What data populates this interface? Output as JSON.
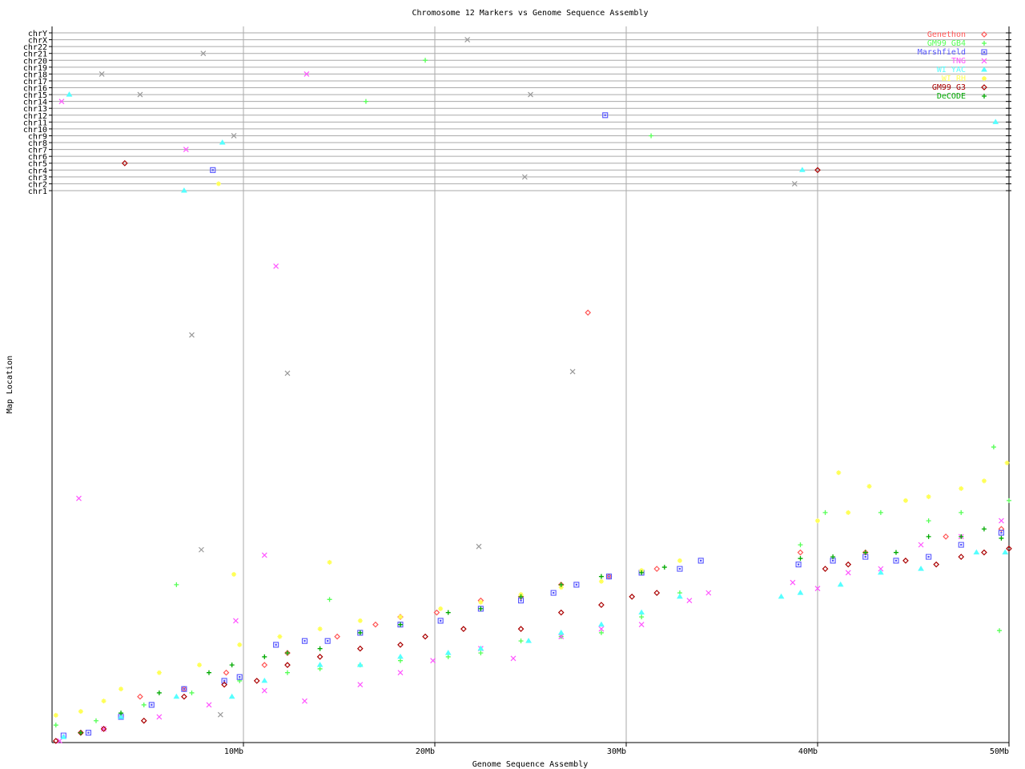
{
  "chart_data": {
    "type": "scatter",
    "title": "Chromosome 12 Markers vs Genome Sequence Assembly",
    "xlabel": "Genome Sequence Assembly",
    "ylabel": "Map Location",
    "xlim": [
      0,
      50
    ],
    "ylim": [
      0,
      100
    ],
    "x_ticks": [
      {
        "v": 10,
        "label": "10Mb"
      },
      {
        "v": 20,
        "label": "20Mb"
      },
      {
        "v": 30,
        "label": "30Mb"
      },
      {
        "v": 40,
        "label": "40Mb"
      },
      {
        "v": 50,
        "label": "50Mb"
      }
    ],
    "chromosome_rows": [
      "chrY",
      "chrX",
      "chr22",
      "chr21",
      "chr20",
      "chr19",
      "chr18",
      "chr17",
      "chr16",
      "chr15",
      "chr14",
      "chr13",
      "chr12",
      "chr11",
      "chr10",
      "chr9",
      "chr8",
      "chr7",
      "chr6",
      "chr5",
      "chr4",
      "chr3",
      "chr2",
      "chr1"
    ],
    "grid": true,
    "legend_position": "top-right",
    "series": [
      {
        "name": "Genethon",
        "color": "#ff5555",
        "marker": "diamond",
        "points": [
          [
            4.6,
            8.4
          ],
          [
            6.9,
            9.8
          ],
          [
            9.1,
            12.8
          ],
          [
            11.1,
            14.2
          ],
          [
            12.3,
            16.4
          ],
          [
            14.9,
            19.4
          ],
          [
            16.9,
            21.6
          ],
          [
            18.2,
            23.0
          ],
          [
            20.1,
            23.8
          ],
          [
            22.4,
            26.0
          ],
          [
            24.5,
            26.7
          ],
          [
            26.6,
            28.9
          ],
          [
            29.1,
            30.4
          ],
          [
            31.6,
            31.8
          ],
          [
            39.1,
            34.8
          ],
          [
            42.5,
            34.8
          ],
          [
            46.7,
            37.7
          ],
          [
            49.6,
            39.1
          ],
          [
            28.0,
            78.7
          ]
        ],
        "off_chromosome": []
      },
      {
        "name": "GM99 GB4",
        "color": "#55ff55",
        "marker": "plus",
        "points": [
          [
            0.2,
            3.2
          ],
          [
            2.3,
            4.0
          ],
          [
            4.8,
            6.9
          ],
          [
            7.3,
            9.1
          ],
          [
            9.8,
            11.3
          ],
          [
            12.3,
            12.8
          ],
          [
            14.0,
            13.5
          ],
          [
            16.1,
            14.2
          ],
          [
            18.2,
            15.0
          ],
          [
            20.7,
            15.7
          ],
          [
            22.4,
            16.4
          ],
          [
            24.5,
            18.6
          ],
          [
            26.6,
            19.4
          ],
          [
            28.7,
            20.1
          ],
          [
            30.8,
            23.0
          ],
          [
            32.8,
            27.4
          ],
          [
            39.1,
            36.2
          ],
          [
            40.4,
            42.1
          ],
          [
            43.3,
            42.1
          ],
          [
            45.8,
            40.6
          ],
          [
            47.5,
            42.1
          ],
          [
            50.0,
            44.3
          ],
          [
            6.5,
            28.9
          ],
          [
            14.5,
            26.2
          ],
          [
            49.2,
            54.1
          ],
          [
            49.5,
            20.5
          ]
        ],
        "off_chromosome": [
          {
            "chr": "chr20",
            "x": 19.5
          },
          {
            "chr": "chr14",
            "x": 16.4
          },
          {
            "chr": "chr9",
            "x": 31.3
          }
        ]
      },
      {
        "name": "Marshfield",
        "color": "#5555ff",
        "marker": "square",
        "points": [
          [
            0.6,
            1.3
          ],
          [
            1.9,
            1.8
          ],
          [
            3.6,
            4.7
          ],
          [
            5.2,
            6.9
          ],
          [
            6.9,
            9.8
          ],
          [
            9.0,
            11.3
          ],
          [
            9.8,
            12.0
          ],
          [
            11.7,
            17.9
          ],
          [
            13.2,
            18.6
          ],
          [
            14.4,
            18.6
          ],
          [
            16.1,
            20.1
          ],
          [
            18.2,
            21.6
          ],
          [
            20.3,
            22.3
          ],
          [
            22.4,
            24.5
          ],
          [
            24.5,
            26.0
          ],
          [
            26.2,
            27.4
          ],
          [
            27.4,
            28.9
          ],
          [
            29.1,
            30.4
          ],
          [
            30.8,
            31.1
          ],
          [
            32.8,
            31.8
          ],
          [
            33.9,
            33.3
          ],
          [
            39.0,
            32.6
          ],
          [
            40.8,
            33.3
          ],
          [
            42.5,
            34.0
          ],
          [
            44.1,
            33.3
          ],
          [
            45.8,
            34.0
          ],
          [
            47.5,
            36.2
          ],
          [
            49.6,
            38.4
          ]
        ],
        "off_chromosome": [
          {
            "chr": "chr4",
            "x": 8.4
          },
          {
            "chr": "chr12",
            "x": 28.9
          }
        ]
      },
      {
        "name": "TNG",
        "color": "#ff55ff",
        "marker": "x",
        "points": [
          [
            0.4,
            0.3
          ],
          [
            2.7,
            2.5
          ],
          [
            5.6,
            4.7
          ],
          [
            8.2,
            6.9
          ],
          [
            11.1,
            9.5
          ],
          [
            13.2,
            7.6
          ],
          [
            16.1,
            10.6
          ],
          [
            18.2,
            12.8
          ],
          [
            19.9,
            15.0
          ],
          [
            22.4,
            17.2
          ],
          [
            24.1,
            15.4
          ],
          [
            26.6,
            19.4
          ],
          [
            28.7,
            20.8
          ],
          [
            30.8,
            21.6
          ],
          [
            33.3,
            26.0
          ],
          [
            34.3,
            27.4
          ],
          [
            38.7,
            29.3
          ],
          [
            40.0,
            28.2
          ],
          [
            41.6,
            31.1
          ],
          [
            43.3,
            31.8
          ],
          [
            45.4,
            36.2
          ],
          [
            47.5,
            37.7
          ],
          [
            49.6,
            40.6
          ],
          [
            11.7,
            87.2
          ],
          [
            1.4,
            44.7
          ],
          [
            11.1,
            34.3
          ],
          [
            9.6,
            22.3
          ]
        ],
        "off_chromosome": [
          {
            "chr": "chr14",
            "x": 0.5
          },
          {
            "chr": "chr18",
            "x": 13.3
          },
          {
            "chr": "chr7",
            "x": 7.0
          }
        ]
      },
      {
        "name": "WI YAC",
        "color": "#55ffff",
        "marker": "triangle",
        "points": [
          [
            0.6,
            1.0
          ],
          [
            3.6,
            4.7
          ],
          [
            6.5,
            8.4
          ],
          [
            9.4,
            8.4
          ],
          [
            11.1,
            11.3
          ],
          [
            14.0,
            14.2
          ],
          [
            16.1,
            14.2
          ],
          [
            18.2,
            15.7
          ],
          [
            20.7,
            16.4
          ],
          [
            22.4,
            17.2
          ],
          [
            24.9,
            18.6
          ],
          [
            26.6,
            20.1
          ],
          [
            28.7,
            21.6
          ],
          [
            30.8,
            23.8
          ],
          [
            32.8,
            26.7
          ],
          [
            38.1,
            26.7
          ],
          [
            39.1,
            27.4
          ],
          [
            41.2,
            28.9
          ],
          [
            43.3,
            31.1
          ],
          [
            45.4,
            31.8
          ],
          [
            48.3,
            34.8
          ],
          [
            49.8,
            34.8
          ]
        ],
        "off_chromosome": [
          {
            "chr": "chr15",
            "x": 0.9
          },
          {
            "chr": "chr8",
            "x": 8.9
          },
          {
            "chr": "chr1",
            "x": 6.9
          },
          {
            "chr": "chr4",
            "x": 39.2
          },
          {
            "chr": "chr11",
            "x": 49.3
          }
        ]
      },
      {
        "name": "WI RH",
        "color": "#ffff55",
        "marker": "asterisk",
        "points": [
          [
            0.2,
            5.0
          ],
          [
            1.5,
            5.7
          ],
          [
            2.7,
            7.6
          ],
          [
            3.6,
            9.8
          ],
          [
            5.6,
            12.8
          ],
          [
            7.7,
            14.2
          ],
          [
            9.8,
            17.9
          ],
          [
            11.9,
            19.4
          ],
          [
            14.0,
            20.8
          ],
          [
            16.1,
            22.3
          ],
          [
            18.2,
            23.0
          ],
          [
            20.3,
            24.5
          ],
          [
            22.4,
            25.7
          ],
          [
            24.5,
            27.1
          ],
          [
            26.6,
            28.4
          ],
          [
            28.7,
            29.5
          ],
          [
            30.8,
            31.5
          ],
          [
            32.8,
            33.3
          ],
          [
            40.0,
            40.6
          ],
          [
            41.1,
            49.4
          ],
          [
            41.6,
            42.1
          ],
          [
            42.7,
            46.9
          ],
          [
            44.6,
            44.3
          ],
          [
            45.8,
            45.0
          ],
          [
            47.5,
            46.5
          ],
          [
            48.7,
            47.9
          ],
          [
            49.9,
            51.2
          ],
          [
            9.5,
            30.8
          ],
          [
            14.5,
            33.0
          ]
        ],
        "off_chromosome": [
          {
            "chr": "chr2",
            "x": 8.7
          }
        ]
      },
      {
        "name": "GM99 G3",
        "color": "#aa0000",
        "marker": "diamond",
        "points": [
          [
            0.2,
            0.3
          ],
          [
            1.5,
            1.8
          ],
          [
            2.7,
            2.5
          ],
          [
            4.8,
            4.0
          ],
          [
            6.9,
            8.4
          ],
          [
            9.0,
            10.6
          ],
          [
            10.7,
            11.3
          ],
          [
            12.3,
            14.2
          ],
          [
            14.0,
            15.7
          ],
          [
            16.1,
            17.2
          ],
          [
            18.2,
            17.9
          ],
          [
            19.5,
            19.4
          ],
          [
            21.5,
            20.8
          ],
          [
            24.5,
            20.8
          ],
          [
            26.6,
            23.8
          ],
          [
            28.7,
            25.2
          ],
          [
            30.3,
            26.7
          ],
          [
            31.6,
            27.4
          ],
          [
            40.4,
            31.8
          ],
          [
            41.6,
            32.6
          ],
          [
            44.6,
            33.3
          ],
          [
            46.2,
            32.6
          ],
          [
            47.5,
            34.0
          ],
          [
            48.7,
            34.8
          ],
          [
            50.0,
            35.5
          ]
        ],
        "off_chromosome": [
          {
            "chr": "chr5",
            "x": 3.8
          },
          {
            "chr": "chr4",
            "x": 40.0
          }
        ]
      },
      {
        "name": "DeCODE",
        "color": "#00aa00",
        "marker": "plus",
        "points": [
          [
            1.5,
            1.8
          ],
          [
            3.6,
            5.4
          ],
          [
            5.6,
            9.1
          ],
          [
            8.2,
            12.8
          ],
          [
            9.4,
            14.2
          ],
          [
            11.1,
            15.7
          ],
          [
            12.3,
            16.4
          ],
          [
            14.0,
            17.2
          ],
          [
            16.1,
            20.1
          ],
          [
            18.2,
            21.6
          ],
          [
            20.7,
            23.8
          ],
          [
            22.4,
            24.5
          ],
          [
            24.5,
            26.7
          ],
          [
            26.6,
            28.9
          ],
          [
            28.7,
            30.4
          ],
          [
            30.8,
            31.1
          ],
          [
            32.0,
            32.1
          ],
          [
            39.1,
            33.7
          ],
          [
            40.8,
            34.0
          ],
          [
            42.5,
            34.8
          ],
          [
            44.1,
            34.8
          ],
          [
            45.8,
            37.7
          ],
          [
            47.5,
            37.7
          ],
          [
            48.7,
            39.1
          ],
          [
            49.6,
            37.4
          ]
        ],
        "off_chromosome": []
      },
      {
        "color": "#999999",
        "marker": "x",
        "points": [
          [
            7.3,
            74.6
          ],
          [
            12.3,
            67.6
          ],
          [
            27.2,
            67.9
          ],
          [
            7.8,
            35.3
          ],
          [
            22.3,
            35.9
          ],
          [
            8.8,
            5.1
          ]
        ],
        "off_chromosome": [
          {
            "chr": "chrX",
            "x": 21.7
          },
          {
            "chr": "chr21",
            "x": 7.9
          },
          {
            "chr": "chr18",
            "x": 2.6
          },
          {
            "chr": "chr15",
            "x": 4.6
          },
          {
            "chr": "chr15",
            "x": 25.0
          },
          {
            "chr": "chr9",
            "x": 9.5
          },
          {
            "chr": "chr3",
            "x": 24.7
          },
          {
            "chr": "chr2",
            "x": 38.8
          }
        ]
      }
    ]
  }
}
